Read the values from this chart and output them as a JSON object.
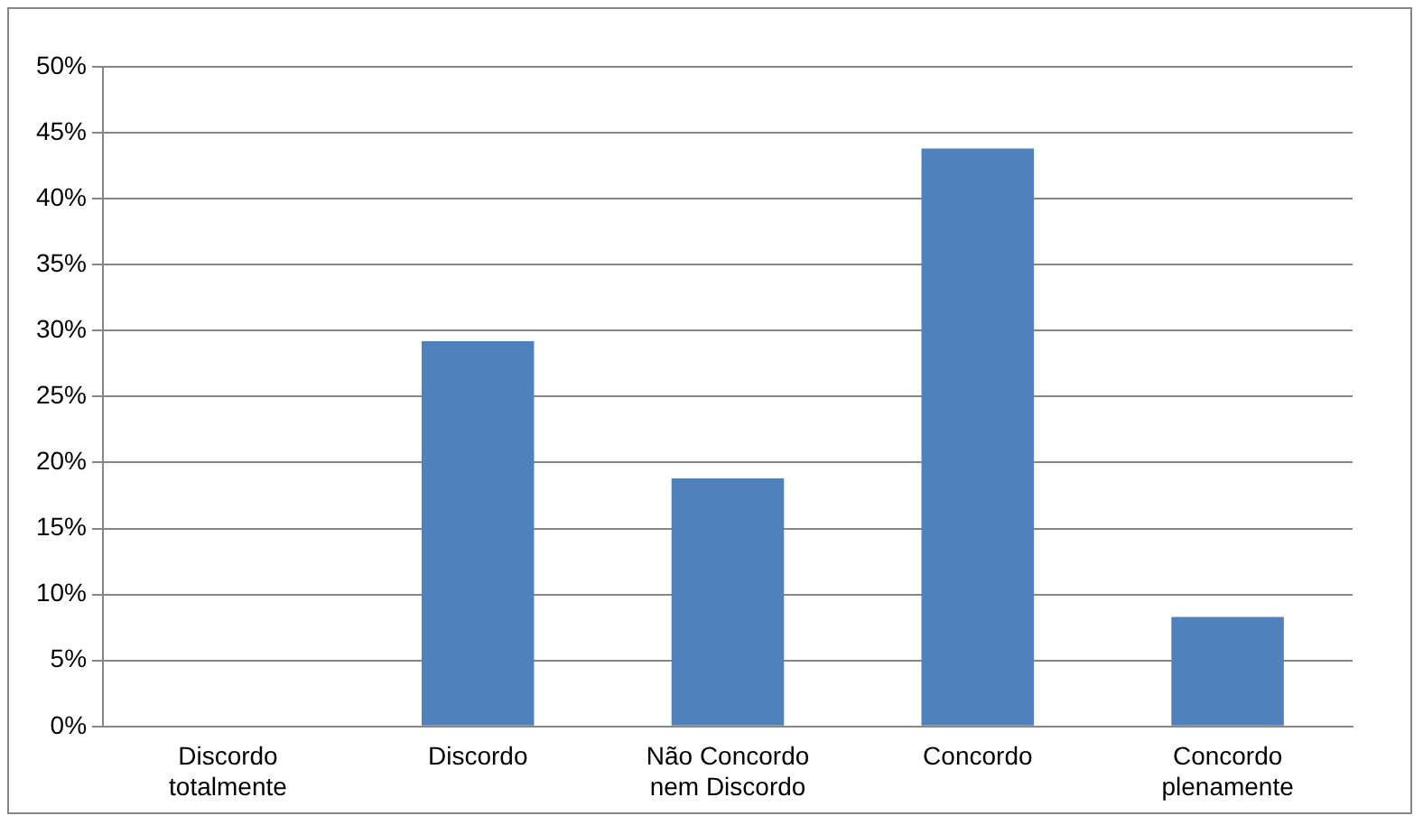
{
  "chart_data": {
    "type": "bar",
    "categories": [
      "Discordo totalmente",
      "Discordo",
      "Não Concordo nem Discordo",
      "Concordo",
      "Concordo plenamente"
    ],
    "values": [
      0,
      29.2,
      18.8,
      43.8,
      8.3
    ],
    "color": "#4f81bd",
    "ylim": [
      0,
      50
    ],
    "yticks": [
      {
        "value": 0,
        "label": "0%"
      },
      {
        "value": 5,
        "label": "5%"
      },
      {
        "value": 10,
        "label": "10%"
      },
      {
        "value": 15,
        "label": "15%"
      },
      {
        "value": 20,
        "label": "20%"
      },
      {
        "value": 25,
        "label": "25%"
      },
      {
        "value": 30,
        "label": "30%"
      },
      {
        "value": 35,
        "label": "35%"
      },
      {
        "value": 40,
        "label": "40%"
      },
      {
        "value": 45,
        "label": "45%"
      },
      {
        "value": 50,
        "label": "50%"
      }
    ],
    "grid": "y",
    "legend": false
  }
}
